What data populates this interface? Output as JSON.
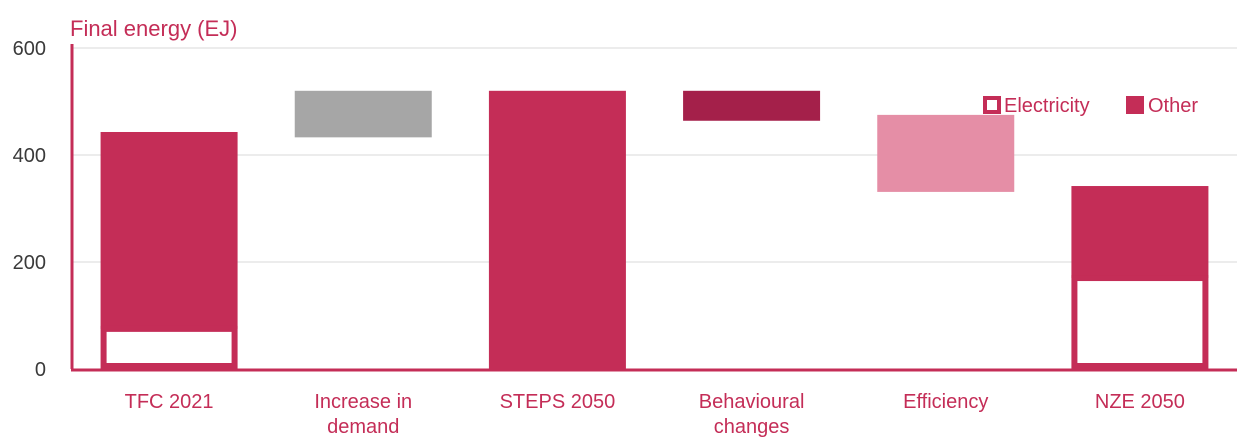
{
  "chart_data": {
    "type": "bar",
    "subtype": "waterfall",
    "title": "Final energy (EJ)",
    "xlabel": "",
    "ylabel": "",
    "ylim": [
      0,
      600
    ],
    "yticks": [
      "0",
      "200",
      "400",
      "600"
    ],
    "grid": true,
    "legend_position": "top-right",
    "legend": [
      {
        "name": "Electricity",
        "style": "outlined"
      },
      {
        "name": "Other",
        "style": "filled"
      }
    ],
    "categories": [
      {
        "label_lines": [
          "TFC 2021"
        ],
        "kind": "stack",
        "electricity": 75,
        "other": 368,
        "color": "#c42d57"
      },
      {
        "label_lines": [
          "Increase in",
          "demand"
        ],
        "kind": "delta",
        "start": 433,
        "end": 520,
        "color": "#a6a6a6"
      },
      {
        "label_lines": [
          "STEPS 2050"
        ],
        "kind": "stack",
        "electricity": 0,
        "other": 520,
        "color": "#c42d57"
      },
      {
        "label_lines": [
          "Behavioural",
          "changes"
        ],
        "kind": "delta",
        "start": 464,
        "end": 520,
        "color": "#a4204a"
      },
      {
        "label_lines": [
          "Efficiency"
        ],
        "kind": "delta",
        "start": 331,
        "end": 475,
        "color": "#e58ea6"
      },
      {
        "label_lines": [
          "NZE 2050"
        ],
        "kind": "stack",
        "electricity": 170,
        "other": 172,
        "color": "#c42d57"
      }
    ],
    "colors": {
      "accent": "#c42d57",
      "axis": "#c42d57",
      "grid": "#d9d9d9",
      "tick_text": "#3a3a3a"
    }
  }
}
